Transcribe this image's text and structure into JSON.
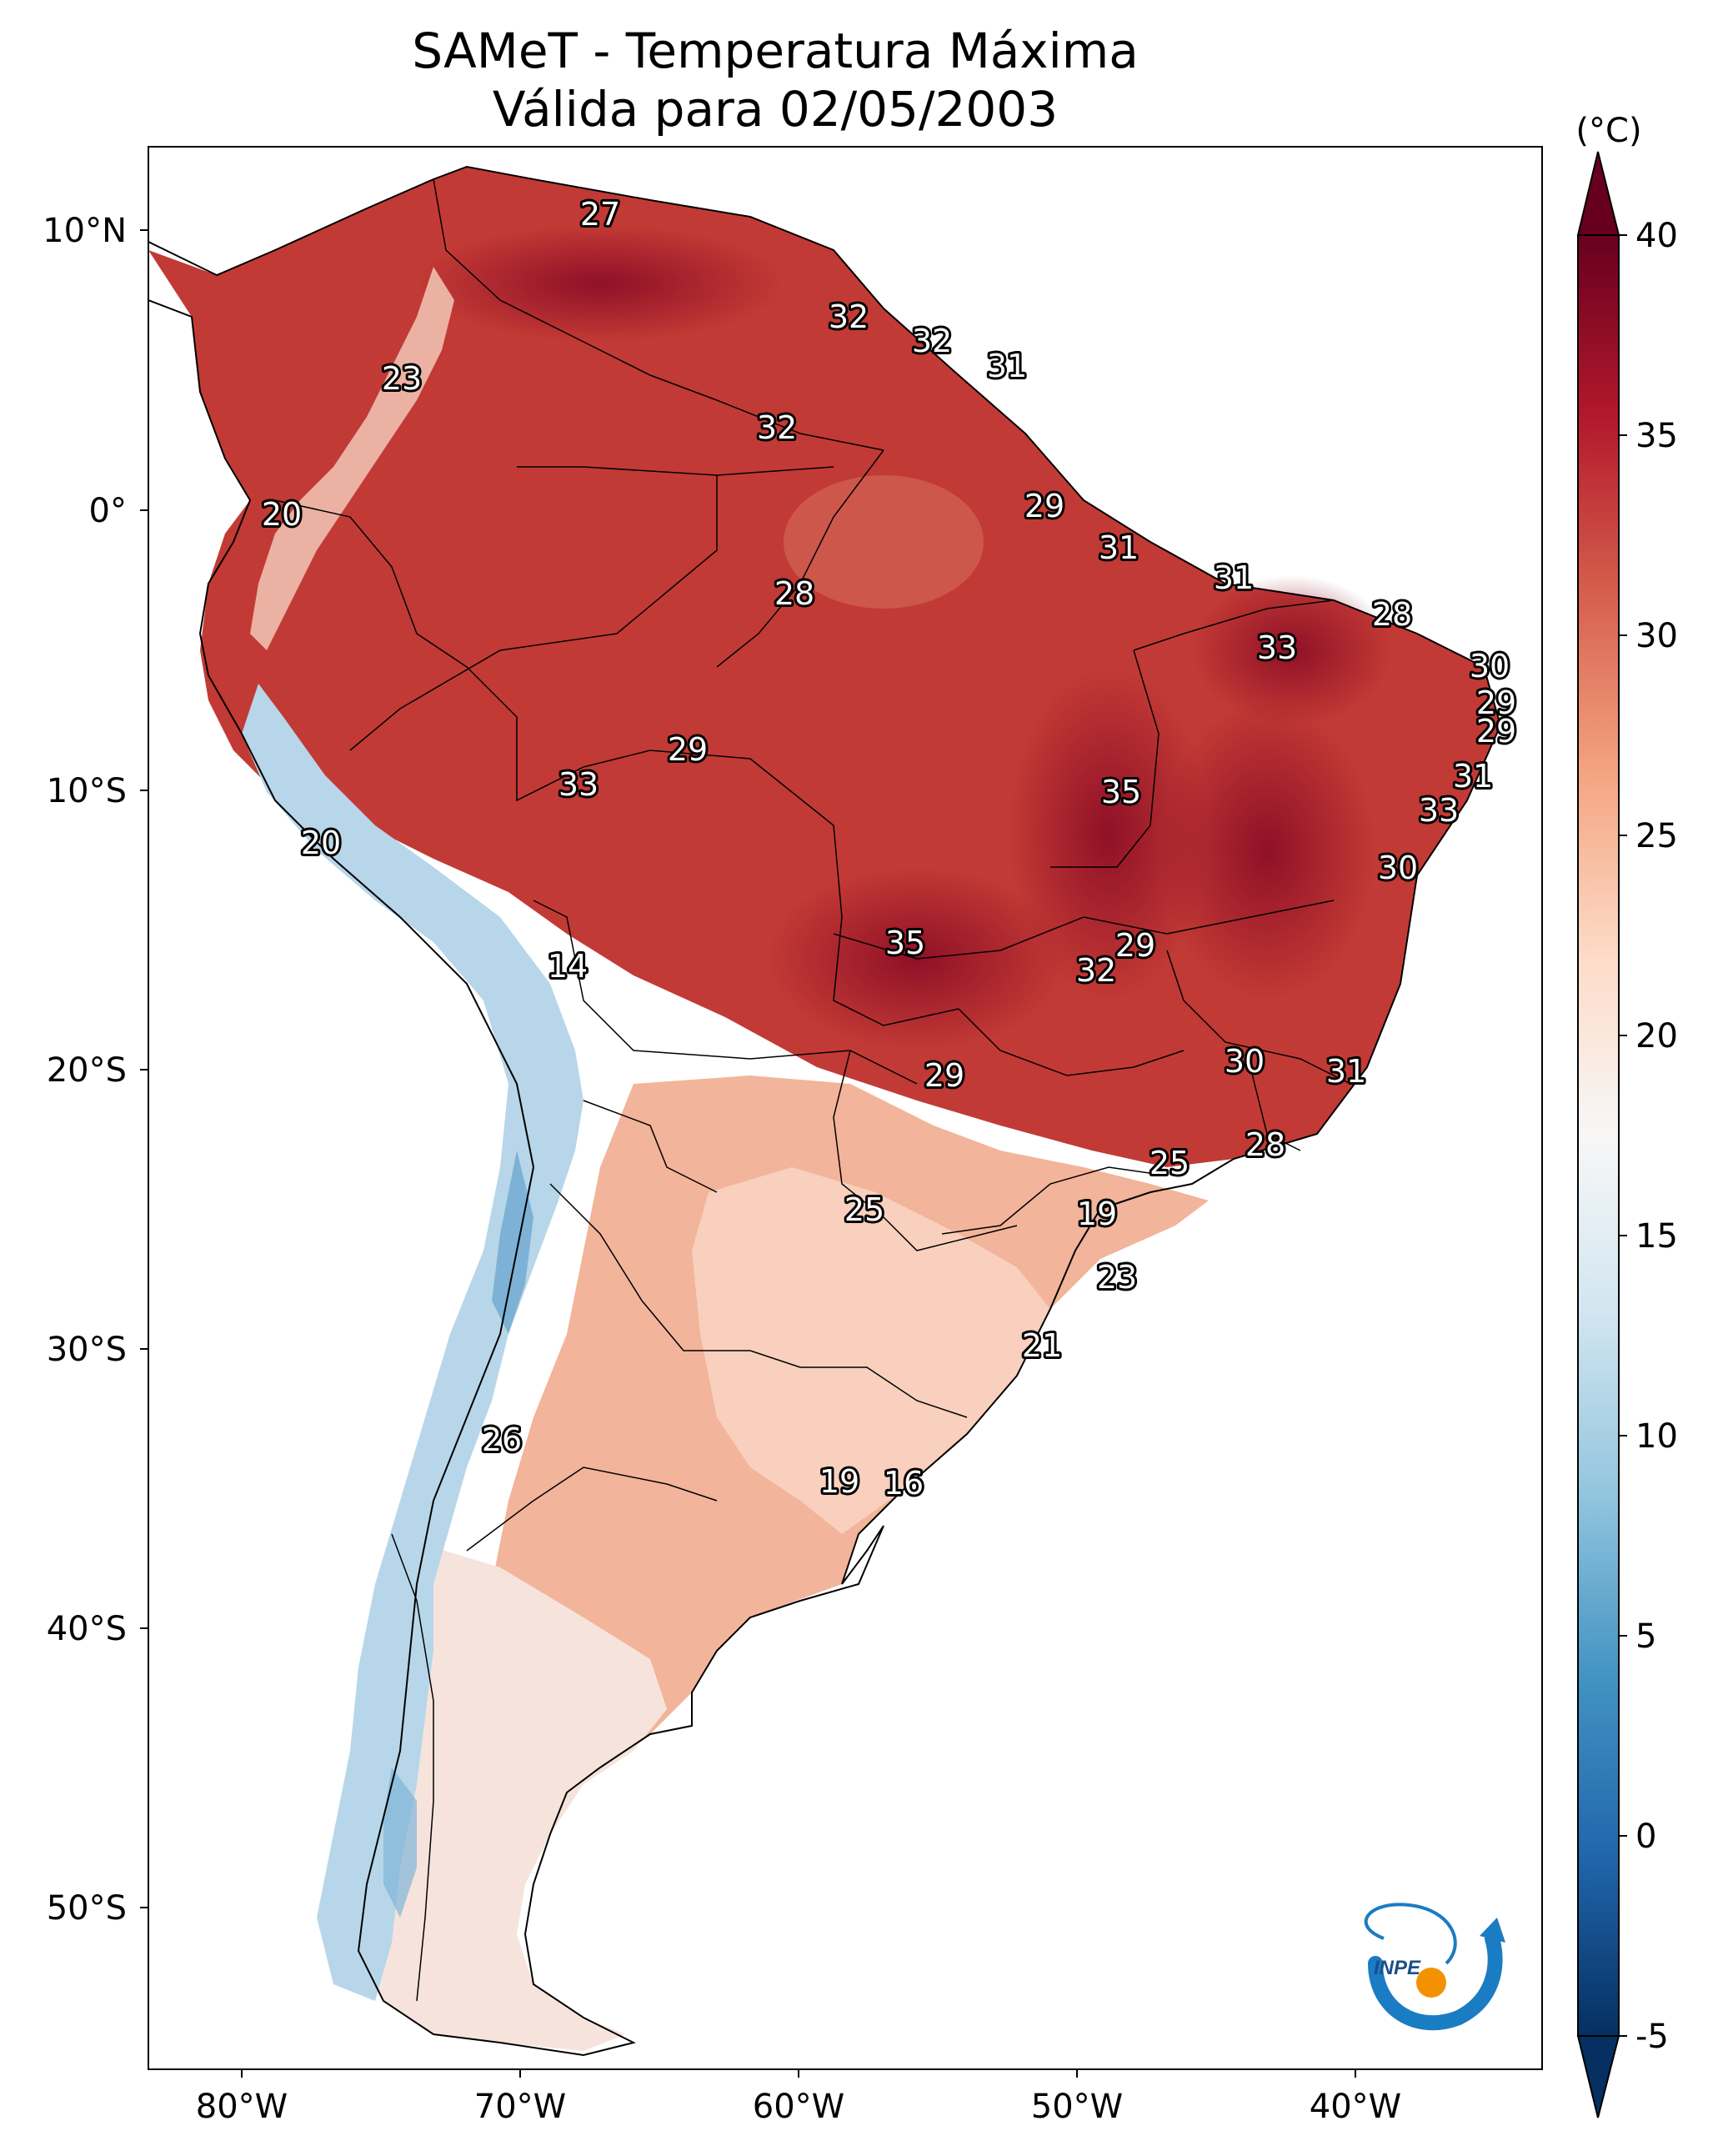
{
  "title": {
    "line1": "SAMeT - Temperatura Máxima",
    "line2": "Válida para 02/05/2003"
  },
  "colorbar": {
    "unit": "(°C)",
    "ticks": [
      "40",
      "35",
      "30",
      "25",
      "20",
      "15",
      "10",
      "5",
      "0",
      "-5"
    ],
    "colors": {
      "dark_red": "#67001f",
      "red": "#b2182b",
      "mid_red": "#d6604d",
      "salmon": "#f4a582",
      "light_pink": "#fddbc7",
      "white": "#f7f7f7",
      "light_blue": "#d1e5f0",
      "sky": "#92c5de",
      "blue": "#4393c3",
      "dark_blue": "#2166ac",
      "navy": "#053061"
    }
  },
  "axes": {
    "lat_labels": [
      "10°N",
      "0°",
      "10°S",
      "20°S",
      "30°S",
      "40°S",
      "50°S"
    ],
    "lon_labels": [
      "80°W",
      "70°W",
      "60°W",
      "50°W",
      "40°W"
    ]
  },
  "city_labels": [
    "27",
    "32",
    "32",
    "31",
    "23",
    "32",
    "20",
    "29",
    "31",
    "31",
    "28",
    "28",
    "33",
    "30",
    "29",
    "29",
    "29",
    "33",
    "35",
    "31",
    "20",
    "33",
    "30",
    "35",
    "29",
    "14",
    "32",
    "30",
    "31",
    "29",
    "28",
    "25",
    "25",
    "19",
    "23",
    "21",
    "26",
    "19",
    "16"
  ],
  "logo": {
    "text": "INPE",
    "icon": "inpe-logo-icon"
  }
}
